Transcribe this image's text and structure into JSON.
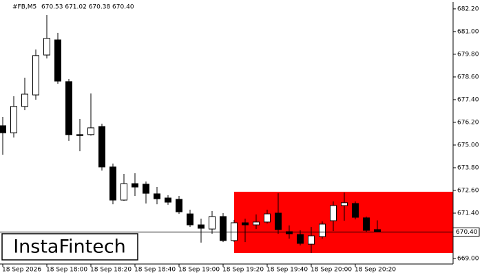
{
  "chart_data": {
    "type": "candlestick",
    "symbol": "#FB,M5",
    "ohlc_header": "670.53 671.02 670.38 670.40",
    "categories": [
      "18 Sep 2026",
      null,
      null,
      null,
      "18 Sep 18:00",
      null,
      null,
      null,
      "18 Sep 18:20",
      null,
      null,
      null,
      "18 Sep 18:40",
      null,
      null,
      null,
      "18 Sep 19:00",
      null,
      null,
      null,
      "18 Sep 19:20",
      null,
      null,
      null,
      "18 Sep 19:40",
      null,
      null,
      null,
      "18 Sep 20:00",
      null,
      null,
      null,
      "18 Sep 20:20",
      null,
      null
    ],
    "open": [
      676.02,
      675.65,
      677.04,
      677.65,
      679.76,
      680.56,
      678.35,
      675.55,
      675.55,
      675.98,
      673.84,
      672.09,
      672.96,
      672.93,
      672.42,
      672.2,
      672.13,
      671.36,
      670.78,
      670.56,
      671.22,
      669.95,
      670.89,
      670.78,
      670.93,
      671.4,
      670.42,
      670.27,
      669.76,
      670.16,
      671.0,
      671.8,
      671.91,
      671.15,
      670.53
    ],
    "high": [
      676.49,
      677.58,
      678.56,
      680.05,
      681.87,
      680.93,
      678.49,
      676.38,
      677.73,
      676.13,
      674.02,
      673.47,
      673.51,
      673.07,
      672.78,
      672.35,
      672.31,
      671.58,
      671.11,
      671.51,
      671.4,
      671.04,
      671.11,
      671.33,
      671.58,
      672.45,
      670.75,
      670.49,
      670.67,
      670.96,
      672.02,
      672.49,
      672.02,
      671.22,
      671.02
    ],
    "low": [
      674.49,
      675.4,
      676.85,
      677.4,
      679.58,
      678.24,
      675.22,
      674.67,
      675.5,
      673.65,
      671.87,
      672.05,
      672.31,
      671.91,
      671.87,
      671.84,
      671.36,
      670.67,
      669.84,
      670.31,
      669.87,
      669.87,
      669.87,
      670.56,
      670.85,
      670.31,
      670.05,
      669.69,
      669.29,
      670.05,
      670.45,
      671.0,
      671.07,
      670.38,
      670.38
    ],
    "close": [
      675.65,
      677.04,
      677.69,
      679.73,
      680.64,
      678.38,
      675.55,
      675.5,
      675.91,
      673.84,
      672.09,
      672.96,
      672.78,
      672.45,
      672.16,
      671.98,
      671.47,
      670.78,
      670.6,
      671.22,
      669.95,
      670.89,
      670.78,
      670.93,
      671.36,
      670.53,
      670.31,
      669.8,
      670.2,
      670.82,
      671.8,
      671.95,
      671.18,
      670.49,
      670.4
    ],
    "up_color": "#ffffff",
    "down_color": "#000000",
    "ylim": [
      668.71,
      682.56
    ],
    "yticks": [
      {
        "value": 682.2,
        "label": "682.20"
      },
      {
        "value": 681.0,
        "label": "681.00"
      },
      {
        "value": 679.8,
        "label": "679.80"
      },
      {
        "value": 678.6,
        "label": "678.60"
      },
      {
        "value": 677.4,
        "label": "677.40"
      },
      {
        "value": 676.2,
        "label": "676.20"
      },
      {
        "value": 675.0,
        "label": "675.00"
      },
      {
        "value": 673.8,
        "label": "673.80"
      },
      {
        "value": 672.6,
        "label": "672.60"
      },
      {
        "value": 671.4,
        "label": "671.40"
      },
      {
        "value": 669.0,
        "label": "669.00"
      }
    ],
    "current_price": {
      "value": 670.4,
      "label": "670.40"
    },
    "zone": {
      "start": 21,
      "top": 672.53,
      "bottom": 669.29,
      "color": "#ff0000"
    },
    "logo": "InstaFintech"
  }
}
